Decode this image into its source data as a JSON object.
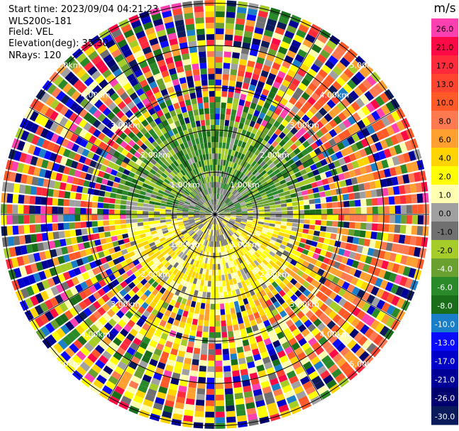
{
  "header": {
    "start_time": "Start time: 2023/09/04 04:21:23",
    "instrument": "WLS200s-181",
    "field": "Field: VEL",
    "elevation": "Elevation(deg): 35.30",
    "nrays": "NRays: 120"
  },
  "chart_data": {
    "type": "ppi-polar-scan",
    "field": "VEL",
    "unit": "m/s",
    "elevation_deg": 35.3,
    "n_rays": 120,
    "range_rings_km": [
      1.0,
      2.0,
      3.0,
      4.0,
      5.0
    ],
    "ring_labels": [
      "1.00km",
      "2.00km",
      "3.00km",
      "4.00km",
      "5.00km"
    ],
    "colorbar": {
      "unit_label": "m/s",
      "ticks": [
        "26.0",
        "21.0",
        "17.0",
        "13.0",
        "10.0",
        "8.0",
        "6.0",
        "4.0",
        "2.0",
        "1.0",
        "0.0",
        "-1.0",
        "-2.0",
        "-4.0",
        "-6.0",
        "-8.0",
        "-10.0",
        "-13.0",
        "-17.0",
        "-21.0",
        "-26.0",
        "-30.0"
      ],
      "colors": [
        "#ff40b0",
        "#ff0a46",
        "#ff2a3c",
        "#ff4530",
        "#ff5a28",
        "#ff7a50",
        "#ffa030",
        "#ffd400",
        "#ffff00",
        "#ffffb0",
        "#a0a0a0",
        "#707070",
        "#a6cc2a",
        "#6aa030",
        "#2a8a2a",
        "#1a6e1a",
        "#1a7ec8",
        "#0a0aff",
        "#0000c8",
        "#000096",
        "#00006e",
        "#0a1a5a"
      ]
    },
    "pattern_summary": {
      "inner_north": "negative velocities (green), about -2 to -6 m/s",
      "inner_south": "positive velocities (yellow/orange), about 2 to 6 m/s",
      "inner_center": "near zero (gray)",
      "outer": "noisy multicolor returns beyond ~2.5 km"
    }
  }
}
